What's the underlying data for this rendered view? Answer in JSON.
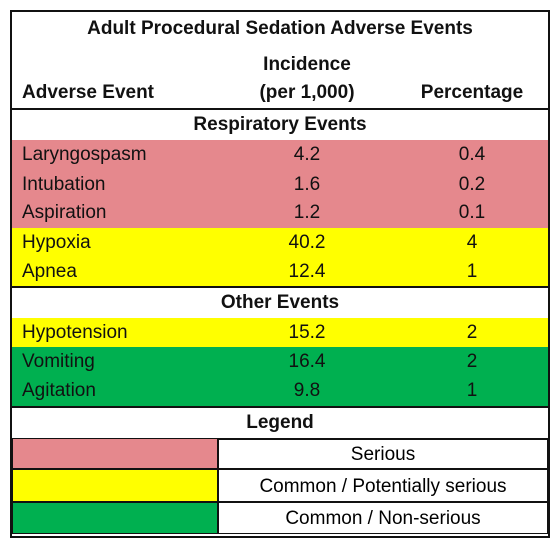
{
  "title": "Adult Procedural Sedation Adverse Events",
  "headers": {
    "event": "Adverse Event",
    "incidence": [
      "Incidence",
      "(per 1,000)"
    ],
    "percentage": "Percentage"
  },
  "sections": [
    {
      "title": "Respiratory Events",
      "rows": [
        [
          "Laryngospasm",
          "4.2",
          "0.4"
        ],
        [
          "Intubation",
          "1.6",
          "0.2"
        ],
        [
          "Aspiration",
          "1.2",
          "0.1"
        ],
        [
          "Hypoxia",
          "40.2",
          "4"
        ],
        [
          "Apnea",
          "12.4",
          "1"
        ]
      ]
    },
    {
      "title": "Other Events",
      "rows": [
        [
          "Hypotension",
          "15.2",
          "2"
        ],
        [
          "Vomiting",
          "16.4",
          "2"
        ],
        [
          "Agitation",
          "9.8",
          "1"
        ]
      ]
    }
  ],
  "legend": {
    "title": "Legend",
    "items": [
      "Serious",
      "Common / Potentially serious",
      "Common / Non-serious"
    ]
  }
}
